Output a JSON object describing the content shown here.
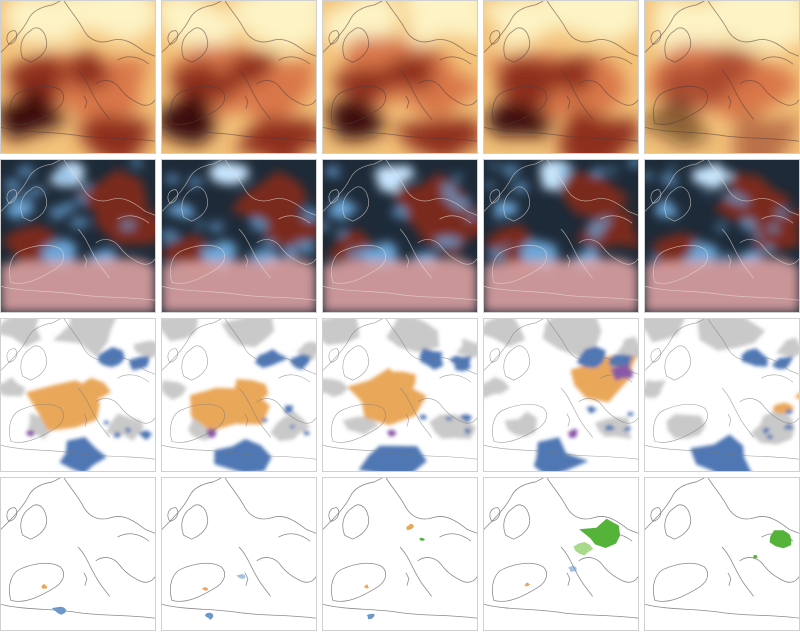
{
  "figure": {
    "columns": 5,
    "rows": [
      {
        "id": "temperature",
        "colormap": [
          "#fdf3c4",
          "#f3c27a",
          "#d9774a",
          "#8e2d1e",
          "#3a0d0a"
        ]
      },
      {
        "id": "anomaly",
        "colormap": [
          "#c8e6ff",
          "#6aa6d8",
          "#1d2a38",
          "#7a2b1d",
          "#e8a8a8"
        ]
      },
      {
        "id": "categories",
        "colors": {
          "background": "#ffffff",
          "grey": "#c9c9c9",
          "orange": "#e9a75a",
          "blue": "#4f77b4",
          "purple": "#8a58a8"
        }
      },
      {
        "id": "events",
        "colors": {
          "orange": "#e9a75a",
          "blue": "#6d98cc",
          "green": "#55b33a",
          "lightgreen": "#a9d98a"
        }
      }
    ]
  }
}
